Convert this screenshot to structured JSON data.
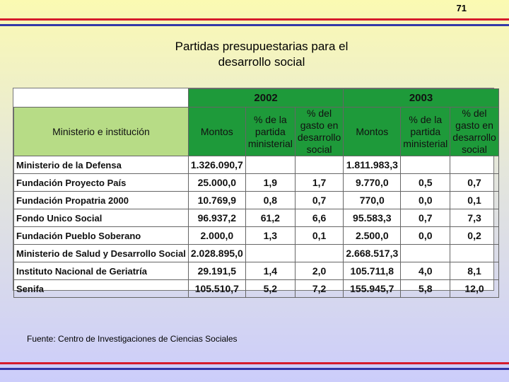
{
  "page_number": "71",
  "title_line1": "Partidas presupuestarias para el",
  "title_line2": "desarrollo social",
  "table": {
    "year1": "2002",
    "year2": "2003",
    "headers": [
      "Ministerio e institución",
      "Montos",
      "% de la partida ministerial",
      "% del gasto en desarrollo social",
      "Montos",
      "% de la partida ministerial",
      "% del gasto en desarrollo social"
    ],
    "rows": [
      [
        "Ministerio de la Defensa",
        "1.326.090,7",
        "",
        "",
        "1.811.983,3",
        "",
        ""
      ],
      [
        "Fundación Proyecto País",
        "25.000,0",
        "1,9",
        "1,7",
        "9.770,0",
        "0,5",
        "0,7"
      ],
      [
        "Fundación Propatria 2000",
        "10.769,9",
        "0,8",
        "0,7",
        "770,0",
        "0,0",
        "0,1"
      ],
      [
        "Fondo Unico Social",
        "96.937,2",
        "61,2",
        "6,6",
        "95.583,3",
        "0,7",
        "7,3"
      ],
      [
        "Fundación Pueblo Soberano",
        "2.000,0",
        "1,3",
        "0,1",
        "2.500,0",
        "0,0",
        "0,2"
      ],
      [
        "Ministerio de Salud y Desarrollo Social",
        "2.028.895,0",
        "",
        "",
        "2.668.517,3",
        "",
        ""
      ],
      [
        "Instituto Nacional de Geriatría",
        "29.191,5",
        "1,4",
        "2,0",
        "105.711,8",
        "4,0",
        "8,1"
      ],
      [
        "Senifa",
        "105.510,7",
        "5,2",
        "7,2",
        "155.945,7",
        "5,8",
        "12,0"
      ]
    ]
  },
  "source": "Fuente: Centro de Investigaciones de Ciencias Sociales",
  "colors": {
    "header_green": "#1e9a3a",
    "header_light_green": "#b7dc86",
    "stripe_red": "#d61b2b",
    "stripe_blue": "#3439a8"
  }
}
